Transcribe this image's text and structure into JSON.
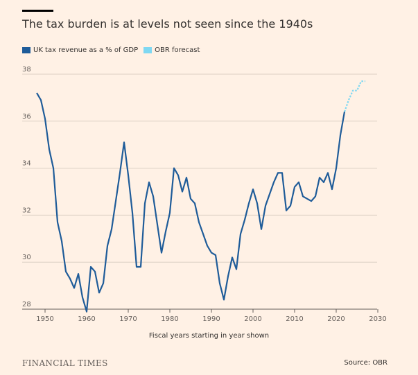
{
  "header": {
    "title": "The tax burden is at levels not seen since the 1940s"
  },
  "legend": {
    "items": [
      {
        "label": "UK tax revenue as a % of GDP",
        "color": "#1F5C99"
      },
      {
        "label": "OBR forecast",
        "color": "#7FD8F2"
      }
    ]
  },
  "chart_data": {
    "type": "line",
    "title": "The tax burden is at levels not seen since the 1940s",
    "xlabel": "Fiscal years starting in year shown",
    "ylabel": "",
    "xlim": [
      1948,
      2030
    ],
    "ylim": [
      28,
      38
    ],
    "xticks": [
      1950,
      1960,
      1970,
      1980,
      1990,
      2000,
      2010,
      2020,
      2030
    ],
    "yticks": [
      28,
      30,
      32,
      34,
      36,
      38
    ],
    "grid": "horizontal",
    "legend_position": "top-left",
    "series": [
      {
        "name": "UK tax revenue as a % of GDP",
        "color": "#1F5C99",
        "style": "solid",
        "points": [
          [
            1948,
            37.2
          ],
          [
            1949,
            36.9
          ],
          [
            1950,
            36.1
          ],
          [
            1951,
            34.8
          ],
          [
            1952,
            34.0
          ],
          [
            1953,
            31.7
          ],
          [
            1954,
            30.9
          ],
          [
            1955,
            29.6
          ],
          [
            1956,
            29.3
          ],
          [
            1957,
            28.9
          ],
          [
            1958,
            29.5
          ],
          [
            1959,
            28.5
          ],
          [
            1960,
            27.9
          ],
          [
            1961,
            29.8
          ],
          [
            1962,
            29.6
          ],
          [
            1963,
            28.7
          ],
          [
            1964,
            29.1
          ],
          [
            1965,
            30.7
          ],
          [
            1966,
            31.4
          ],
          [
            1967,
            32.6
          ],
          [
            1968,
            33.8
          ],
          [
            1969,
            35.1
          ],
          [
            1970,
            33.7
          ],
          [
            1971,
            32.1
          ],
          [
            1972,
            29.8
          ],
          [
            1973,
            29.8
          ],
          [
            1974,
            32.5
          ],
          [
            1975,
            33.4
          ],
          [
            1976,
            32.8
          ],
          [
            1977,
            31.6
          ],
          [
            1978,
            30.4
          ],
          [
            1979,
            31.3
          ],
          [
            1980,
            32.1
          ],
          [
            1981,
            34.0
          ],
          [
            1982,
            33.7
          ],
          [
            1983,
            33.0
          ],
          [
            1984,
            33.6
          ],
          [
            1985,
            32.7
          ],
          [
            1986,
            32.5
          ],
          [
            1987,
            31.7
          ],
          [
            1988,
            31.2
          ],
          [
            1989,
            30.7
          ],
          [
            1990,
            30.4
          ],
          [
            1991,
            30.3
          ],
          [
            1992,
            29.1
          ],
          [
            1993,
            28.4
          ],
          [
            1994,
            29.4
          ],
          [
            1995,
            30.2
          ],
          [
            1996,
            29.7
          ],
          [
            1997,
            31.2
          ],
          [
            1998,
            31.8
          ],
          [
            1999,
            32.5
          ],
          [
            2000,
            33.1
          ],
          [
            2001,
            32.5
          ],
          [
            2002,
            31.4
          ],
          [
            2003,
            32.4
          ],
          [
            2004,
            32.9
          ],
          [
            2005,
            33.4
          ],
          [
            2006,
            33.8
          ],
          [
            2007,
            33.8
          ],
          [
            2008,
            32.2
          ],
          [
            2009,
            32.4
          ],
          [
            2010,
            33.2
          ],
          [
            2011,
            33.4
          ],
          [
            2012,
            32.8
          ],
          [
            2013,
            32.7
          ],
          [
            2014,
            32.6
          ],
          [
            2015,
            32.8
          ],
          [
            2016,
            33.6
          ],
          [
            2017,
            33.4
          ],
          [
            2018,
            33.8
          ],
          [
            2019,
            33.1
          ],
          [
            2020,
            34.0
          ],
          [
            2021,
            35.4
          ],
          [
            2022,
            36.4
          ]
        ]
      },
      {
        "name": "OBR forecast",
        "color": "#7FD8F2",
        "style": "dotted",
        "points": [
          [
            2022,
            36.4
          ],
          [
            2023,
            36.9
          ],
          [
            2024,
            37.3
          ],
          [
            2025,
            37.3
          ],
          [
            2026,
            37.7
          ],
          [
            2027,
            37.7
          ]
        ]
      }
    ]
  },
  "footer": {
    "brand": "FINANCIAL TIMES",
    "source": "Source: OBR"
  }
}
